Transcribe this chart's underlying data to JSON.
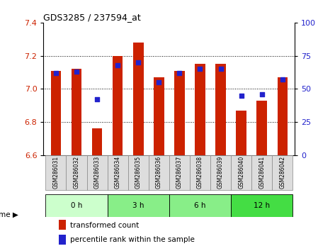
{
  "title": "GDS3285 / 237594_at",
  "samples": [
    "GSM286031",
    "GSM286032",
    "GSM286033",
    "GSM286034",
    "GSM286035",
    "GSM286036",
    "GSM286037",
    "GSM286038",
    "GSM286039",
    "GSM286040",
    "GSM286041",
    "GSM286042"
  ],
  "bar_values": [
    7.11,
    7.12,
    6.76,
    7.2,
    7.28,
    7.07,
    7.11,
    7.15,
    7.15,
    6.87,
    6.93,
    7.07
  ],
  "dot_values": [
    62,
    63,
    42,
    68,
    70,
    55,
    62,
    65,
    65,
    45,
    46,
    57
  ],
  "ylim_left": [
    6.6,
    7.4
  ],
  "ylim_right": [
    0,
    100
  ],
  "yticks_left": [
    6.6,
    6.8,
    7.0,
    7.2,
    7.4
  ],
  "yticks_right": [
    0,
    25,
    50,
    75,
    100
  ],
  "bar_color": "#cc2200",
  "dot_color": "#2222cc",
  "bar_bottom": 6.6,
  "time_groups": [
    {
      "label": "0 h",
      "spans": [
        0,
        1,
        2
      ],
      "color": "#ccffcc"
    },
    {
      "label": "3 h",
      "spans": [
        3,
        4,
        5
      ],
      "color": "#88ee88"
    },
    {
      "label": "6 h",
      "spans": [
        6,
        7,
        8
      ],
      "color": "#88ee88"
    },
    {
      "label": "12 h",
      "spans": [
        9,
        10,
        11
      ],
      "color": "#44dd44"
    }
  ],
  "legend_bar_label": "transformed count",
  "legend_dot_label": "percentile rank within the sample",
  "background_color": "#ffffff",
  "label_box_color": "#dddddd",
  "label_box_edge": "#888888"
}
